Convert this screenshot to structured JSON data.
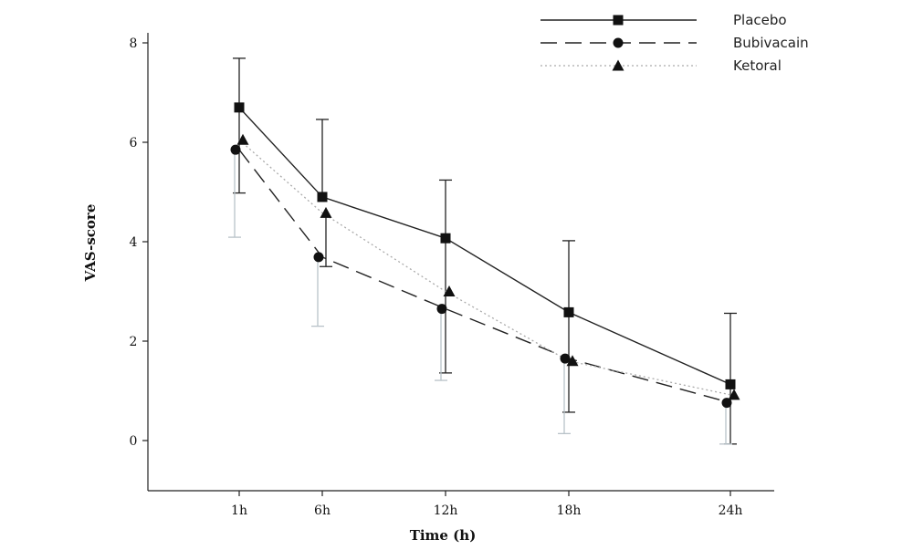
{
  "chart_data": {
    "type": "line",
    "xlabel": "Time (h)",
    "ylabel": "VAS-score",
    "categories": [
      "1h",
      "6h",
      "12h",
      "18h",
      "24h"
    ],
    "ylim": [
      -1,
      8
    ],
    "yticks": [
      0,
      2,
      4,
      6,
      8
    ],
    "grid": false,
    "legend_position": "top-right",
    "series": [
      {
        "name": "Placebo",
        "marker": "square",
        "line_style": "solid",
        "color": "#222222",
        "values": [
          6.7,
          4.9,
          4.07,
          2.58,
          1.13
        ],
        "error_low": [
          4.98,
          null,
          1.36,
          0.57,
          -0.07
        ],
        "error_high": [
          7.69,
          6.46,
          5.24,
          4.02,
          2.56
        ]
      },
      {
        "name": "Bubivacain",
        "marker": "circle",
        "line_style": "dashed",
        "color": "#222222",
        "values": [
          5.85,
          3.69,
          2.65,
          1.65,
          0.76
        ],
        "error_low": [
          4.09,
          2.3,
          1.21,
          0.14,
          -0.07
        ],
        "error_high": [
          null,
          null,
          null,
          null,
          null
        ]
      },
      {
        "name": "Ketoral",
        "marker": "triangle",
        "line_style": "dotted",
        "color": "#222222",
        "values": [
          6.05,
          4.58,
          3.0,
          1.6,
          0.92
        ],
        "error_low": [
          null,
          3.5,
          null,
          null,
          null
        ],
        "error_high": [
          null,
          null,
          null,
          null,
          null
        ]
      }
    ]
  }
}
